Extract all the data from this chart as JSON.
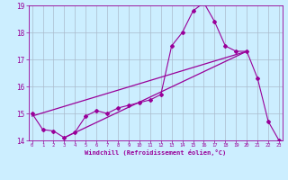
{
  "xlabel": "Windchill (Refroidissement éolien,°C)",
  "bg_color": "#cceeff",
  "line_color": "#990099",
  "grid_color": "#aaddcc",
  "xmin": 0,
  "xmax": 23,
  "ymin": 14,
  "ymax": 19,
  "x_data": [
    0,
    1,
    2,
    3,
    4,
    5,
    6,
    7,
    8,
    9,
    10,
    11,
    12,
    13,
    14,
    15,
    16,
    17,
    18,
    19,
    20,
    21,
    22,
    23
  ],
  "y_main": [
    15.0,
    14.4,
    14.35,
    14.1,
    14.3,
    14.9,
    15.1,
    15.0,
    15.2,
    15.3,
    15.4,
    15.5,
    15.7,
    17.5,
    18.0,
    18.8,
    19.1,
    18.4,
    17.5,
    17.3,
    17.3,
    16.3,
    14.7,
    14.0
  ],
  "trend1_x": [
    0,
    20
  ],
  "trend1_y": [
    14.9,
    17.3
  ],
  "trend2_x": [
    3,
    20
  ],
  "trend2_y": [
    14.1,
    17.3
  ]
}
